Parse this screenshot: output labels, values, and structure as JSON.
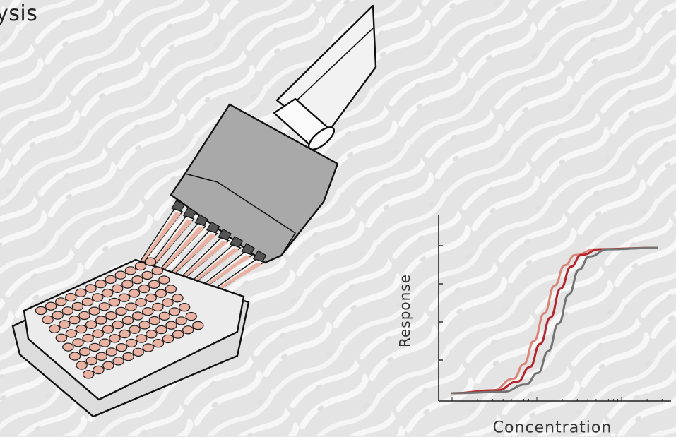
{
  "heading_text": "ysis",
  "illustration": {
    "plate_well_color": "#e9b2a2",
    "tip_fill_color": "#e9b2a2",
    "pipette_body_color": "#a9a9a9",
    "plate_frame_color": "#dcdcdc"
  },
  "chart_data": {
    "type": "line",
    "xlabel": "Concentration",
    "ylabel": "Response",
    "x_scale": "log",
    "grid": false,
    "ylim": [
      0,
      1
    ],
    "x_range": [
      0,
      1
    ],
    "series": [
      {
        "color": "#d98474",
        "x": [
          0,
          0.2,
          0.3,
          0.35,
          0.4,
          0.45,
          0.5,
          0.55,
          0.6,
          0.7,
          1
        ],
        "y": [
          0,
          0.02,
          0.1,
          0.2,
          0.36,
          0.55,
          0.74,
          0.88,
          0.95,
          0.99,
          1
        ]
      },
      {
        "color": "#b3262d",
        "x": [
          0,
          0.22,
          0.32,
          0.38,
          0.43,
          0.48,
          0.53,
          0.58,
          0.63,
          0.72,
          1
        ],
        "y": [
          0,
          0.02,
          0.08,
          0.18,
          0.34,
          0.52,
          0.72,
          0.87,
          0.95,
          0.99,
          1
        ]
      },
      {
        "color": "#737373",
        "x": [
          0,
          0.25,
          0.36,
          0.42,
          0.47,
          0.52,
          0.57,
          0.62,
          0.67,
          0.76,
          1
        ],
        "y": [
          0,
          0.01,
          0.06,
          0.14,
          0.29,
          0.48,
          0.68,
          0.85,
          0.94,
          0.99,
          1
        ]
      }
    ]
  }
}
